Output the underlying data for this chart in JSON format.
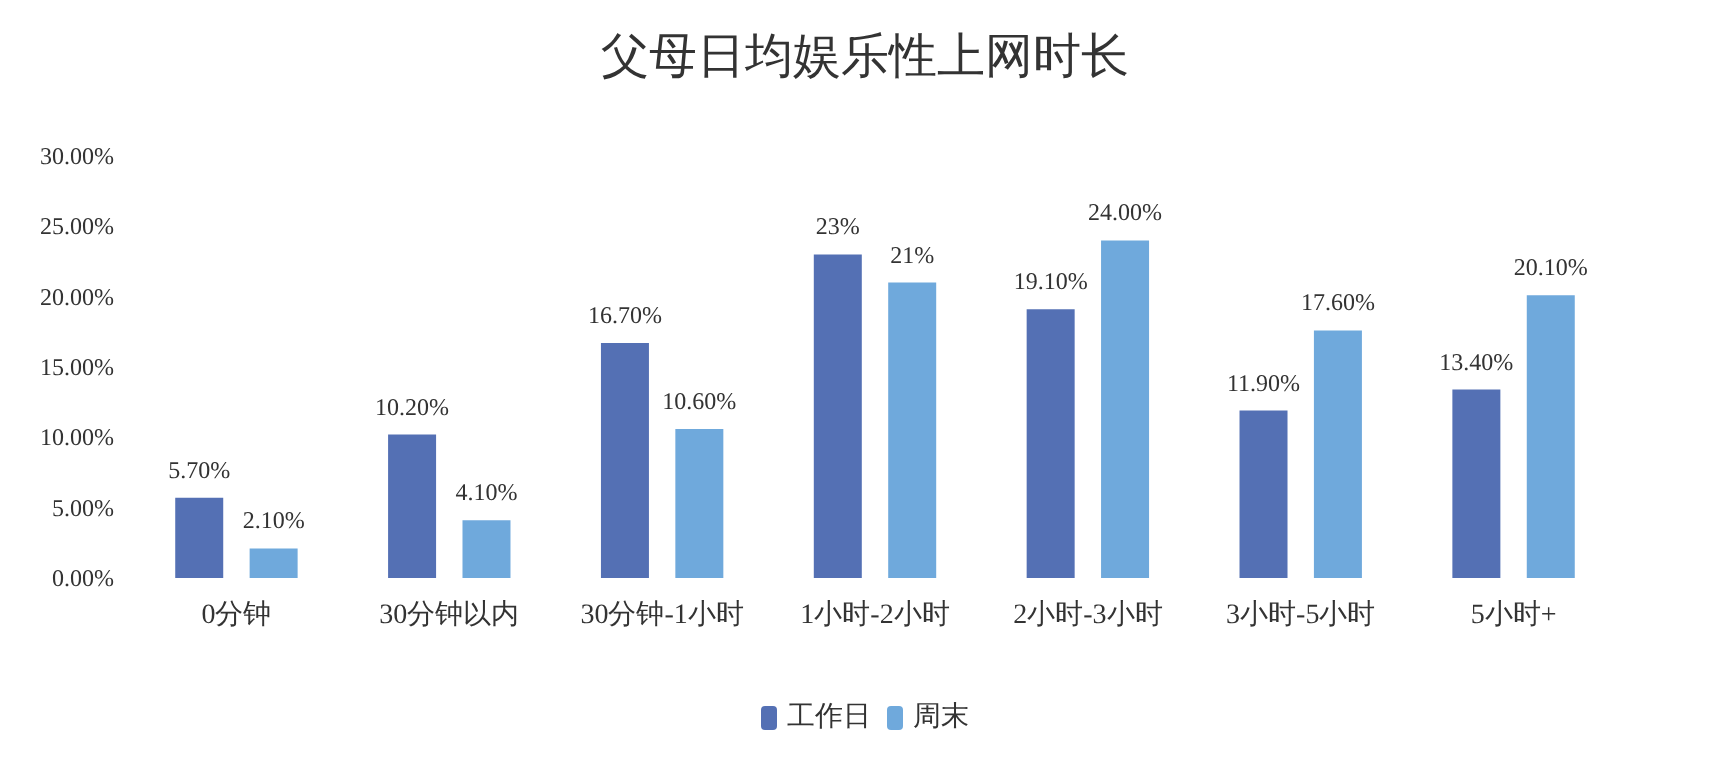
{
  "chart_data": {
    "type": "bar",
    "title": "父母日均娱乐性上网时长",
    "categories": [
      "0分钟",
      "30分钟以内",
      "30分钟-1小时",
      "1小时-2小时",
      "2小时-3小时",
      "3小时-5小时",
      "5小时+"
    ],
    "series": [
      {
        "name": "工作日",
        "color": "#5470b4",
        "values": [
          5.7,
          10.2,
          16.7,
          23,
          19.1,
          11.9,
          13.4
        ],
        "value_labels": [
          "5.70%",
          "10.20%",
          "16.70%",
          "23%",
          "19.10%",
          "11.90%",
          "13.40%"
        ]
      },
      {
        "name": "周末",
        "color": "#6fa9dc",
        "values": [
          2.1,
          4.1,
          10.6,
          21,
          24,
          17.6,
          20.1
        ],
        "value_labels": [
          "2.10%",
          "4.10%",
          "10.60%",
          "21%",
          "24.00%",
          "17.60%",
          "20.10%"
        ]
      }
    ],
    "ylim": [
      0,
      30
    ],
    "yticks": [
      {
        "value": 0,
        "label": "0.00%"
      },
      {
        "value": 5,
        "label": "5.00%"
      },
      {
        "value": 10,
        "label": "10.00%"
      },
      {
        "value": 15,
        "label": "15.00%"
      },
      {
        "value": 20,
        "label": "20.00%"
      },
      {
        "value": 25,
        "label": "25.00%"
      },
      {
        "value": 30,
        "label": "30.00%"
      }
    ],
    "grid": false,
    "legend": "bottom"
  }
}
